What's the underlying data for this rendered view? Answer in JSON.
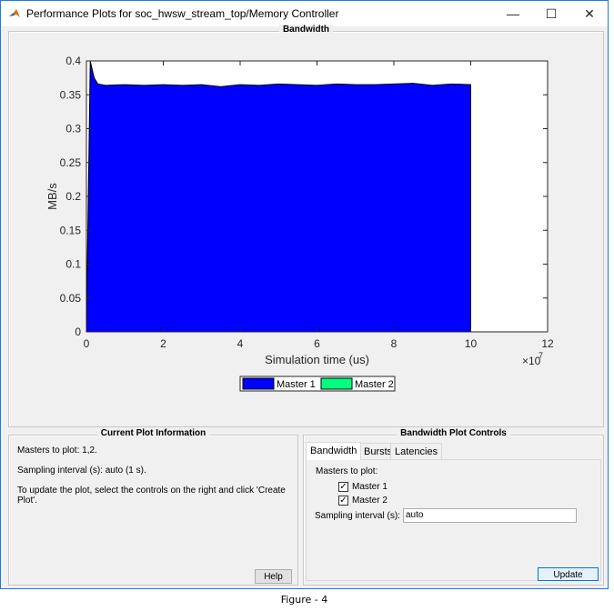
{
  "window": {
    "title": "Performance Plots for soc_hwsw_stream_top/Memory Controller",
    "minimize": "—",
    "maximize": "☐",
    "close": "✕",
    "icon": "matlab-logo-icon"
  },
  "plot_panel": {
    "title": "Bandwidth"
  },
  "chart_data": {
    "type": "area",
    "title": "",
    "xlabel": "Simulation time (us)",
    "ylabel": "MB/s",
    "x_exponent_label": "×10",
    "x_exponent": "7",
    "xlim": [
      0,
      12
    ],
    "ylim": [
      0,
      0.4
    ],
    "xticks": [
      "0",
      "2",
      "4",
      "6",
      "8",
      "10",
      "12"
    ],
    "yticks": [
      "0",
      "0.05",
      "0.1",
      "0.15",
      "0.2",
      "0.25",
      "0.3",
      "0.35",
      "0.4"
    ],
    "grid": false,
    "legend_position": "bottom",
    "series": [
      {
        "name": "Master 1",
        "color": "#0000ff",
        "x": [
          0,
          0.1,
          0.2,
          0.3,
          0.5,
          1,
          1.5,
          2,
          2.5,
          3,
          3.5,
          4,
          4.5,
          5,
          5.5,
          6,
          6.5,
          7,
          7.5,
          8,
          8.5,
          9,
          9.5,
          10,
          10
        ],
        "values": [
          0,
          0.4,
          0.375,
          0.366,
          0.364,
          0.365,
          0.364,
          0.365,
          0.364,
          0.365,
          0.362,
          0.365,
          0.364,
          0.366,
          0.365,
          0.364,
          0.366,
          0.365,
          0.365,
          0.366,
          0.367,
          0.364,
          0.366,
          0.365,
          0
        ]
      },
      {
        "name": "Master 2",
        "color": "#00ff7f",
        "x": [],
        "values": []
      }
    ]
  },
  "info_panel": {
    "title": "Current Plot Information",
    "lines": [
      "Masters to plot: 1,2.",
      "Sampling interval (s): auto (1 s).",
      "To update the plot, select the controls on the right and click 'Create Plot'."
    ],
    "help": "Help"
  },
  "controls_panel": {
    "title": "Bandwidth Plot Controls",
    "tabs": [
      "Bandwidth",
      "Bursts",
      "Latencies"
    ],
    "masters_label": "Masters to plot:",
    "masters": [
      {
        "label": "Master 1",
        "checked": true
      },
      {
        "label": "Master 2",
        "checked": true
      }
    ],
    "sampling_label": "Sampling interval (s):",
    "sampling_value": "auto",
    "update": "Update"
  },
  "caption": "Figure - 4"
}
